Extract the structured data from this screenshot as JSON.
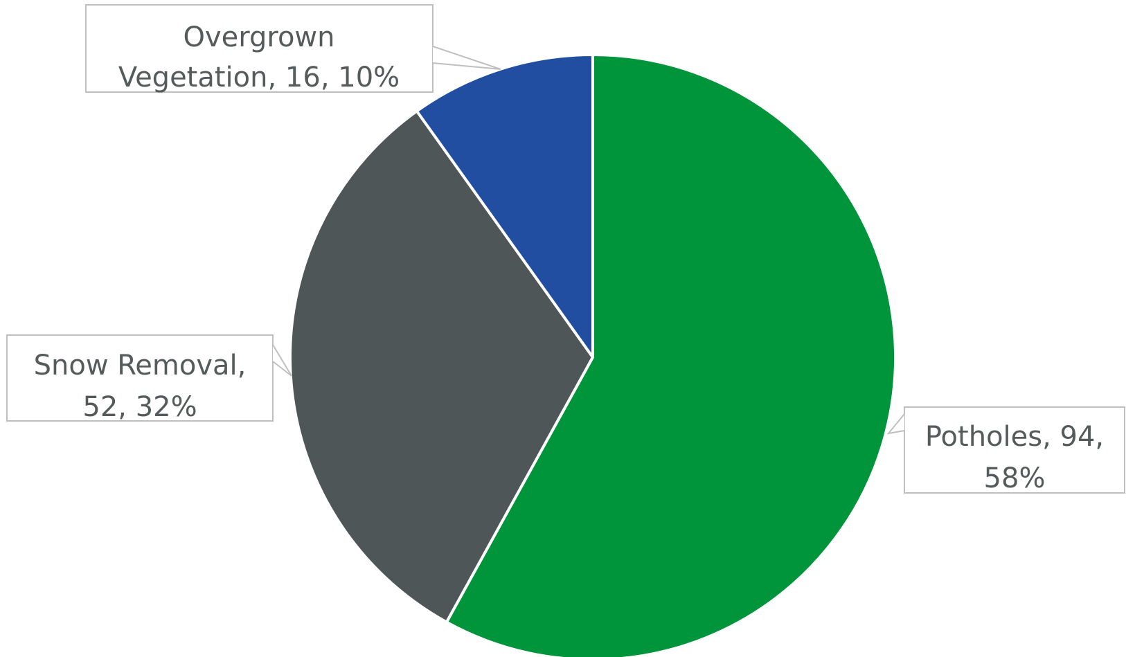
{
  "chart_data": {
    "type": "pie",
    "title": "",
    "start_angle_deg": 0,
    "direction": "clockwise",
    "slices": [
      {
        "label": "Potholes",
        "value": 94,
        "percent": "58%",
        "color": "#00953a",
        "label_lines": [
          "Potholes, 94,",
          "58%"
        ]
      },
      {
        "label": "Snow Removal",
        "value": 52,
        "percent": "32%",
        "color": "#4f5657",
        "label_lines": [
          "Snow Removal,",
          "52, 32%"
        ]
      },
      {
        "label": "Overgrown Vegetation",
        "value": 16,
        "percent": "10%",
        "color": "#214ea1",
        "label_lines": [
          "Overgrown",
          "Vegetation, 16, 10%"
        ]
      }
    ],
    "slice_border_color": "#ffffff",
    "label_text_color": "#555a5a",
    "label_border_color": "#bfbfbf",
    "legend": "none"
  }
}
